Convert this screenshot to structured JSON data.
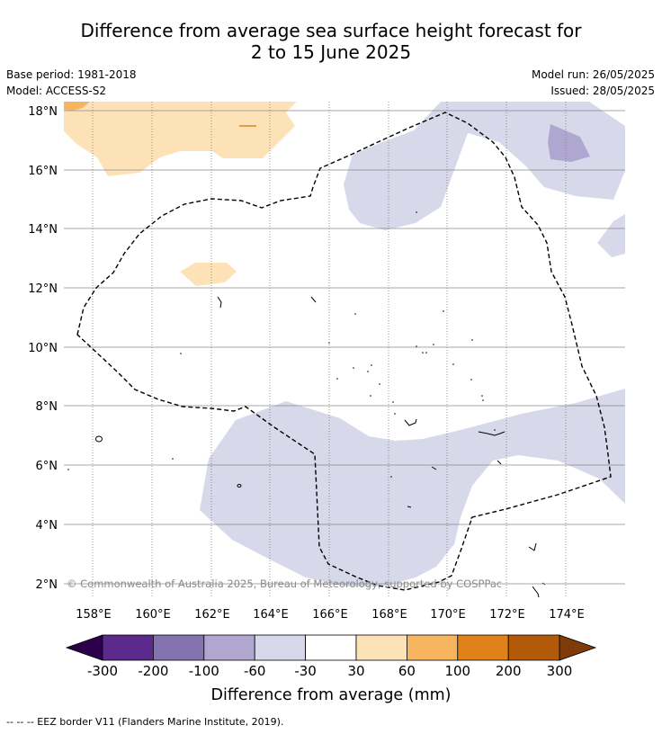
{
  "title_line1": "Difference from average sea surface height forecast for",
  "title_line2": "2 to 15 June 2025",
  "base_period": "Base period: 1981-2018",
  "model": "Model: ACCESS-S2",
  "model_run": "Model run: 26/05/2025",
  "issued": "Issued: 28/05/2025",
  "copyright": "© Commonwealth of Australia 2025, Bureau of Meteorology, supported by COSPPac",
  "lat_labels": [
    "18°N",
    "16°N",
    "14°N",
    "12°N",
    "10°N",
    "8°N",
    "6°N",
    "4°N",
    "2°N"
  ],
  "lon_labels": [
    "158°E",
    "160°E",
    "162°E",
    "164°E",
    "166°E",
    "168°E",
    "170°E",
    "172°E",
    "174°E"
  ],
  "colorbar": {
    "ticks": [
      "-300",
      "-200",
      "-100",
      "-60",
      "-30",
      "30",
      "60",
      "100",
      "200",
      "300"
    ],
    "colors": [
      "#5b2a8c",
      "#8473b0",
      "#b0a7d0",
      "#d7d8ea",
      "#ffffff",
      "#fde2b8",
      "#f8b55f",
      "#e0821a",
      "#b2590a"
    ],
    "under_color": "#2d004b",
    "over_color": "#7f3b08",
    "label": "Difference from average (mm)"
  },
  "legend_note": "-- -- -- EEZ border V11 (Flanders Marine Institute, 2019)."
}
